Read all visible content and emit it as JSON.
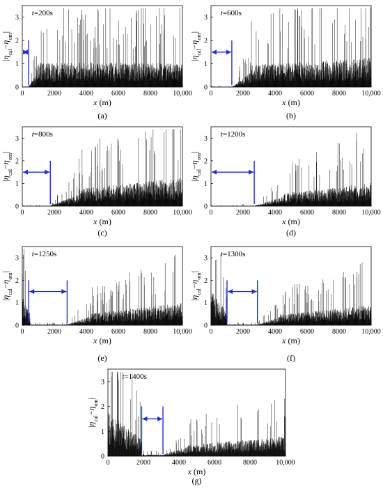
{
  "axis_labels": {
    "x_var": "x",
    "x_unit": " (m)",
    "y_abs": "|",
    "y_eta": "η",
    "y_sub_cal": "cal",
    "y_minus": "−",
    "y_sub_om": "om"
  },
  "time_prefix": "t",
  "time_eq": "=",
  "chart_data": [
    {
      "id": "a",
      "panel_label": "(a)",
      "type": "area",
      "time_value": "200s",
      "xlim": [
        0,
        10000
      ],
      "ylim": [
        0,
        3.5
      ],
      "x_ticks": [
        0,
        2000,
        4000,
        6000,
        8000,
        10000
      ],
      "x_tick_labels": [
        "0",
        "2000",
        "4000",
        "6000",
        "8000",
        "10,000"
      ],
      "y_ticks": [
        0,
        1,
        2,
        3
      ],
      "y_tick_labels": [
        "0",
        "1",
        "2",
        "3"
      ],
      "profile": {
        "flat_until": 400,
        "ramp_to": 900,
        "base_amp": 1.5,
        "trend": 0.0,
        "flat_level": 0.02,
        "front_spike": 0
      },
      "arrow": {
        "x_start": 0,
        "x_end": 400,
        "y": 1.5,
        "v_line_top": 2.0
      },
      "seed": 11
    },
    {
      "id": "b",
      "panel_label": "(b)",
      "type": "area",
      "time_value": "600s",
      "xlim": [
        0,
        10000
      ],
      "ylim": [
        0,
        3.5
      ],
      "x_ticks": [
        0,
        2000,
        4000,
        6000,
        8000,
        10000
      ],
      "x_tick_labels": [
        "0",
        "2000",
        "4000",
        "6000",
        "8000",
        "10,000"
      ],
      "y_ticks": [
        0,
        1,
        2,
        3
      ],
      "y_tick_labels": [
        "0",
        "1",
        "2",
        "3"
      ],
      "profile": {
        "flat_until": 1300,
        "ramp_to": 2500,
        "base_amp": 1.35,
        "trend": 0.25,
        "flat_level": 0.02,
        "front_spike": 0
      },
      "arrow": {
        "x_start": 0,
        "x_end": 1300,
        "y": 1.5,
        "v_line_top": 2.0
      },
      "seed": 23
    },
    {
      "id": "c",
      "panel_label": "(c)",
      "type": "area",
      "time_value": "800s",
      "xlim": [
        0,
        10000
      ],
      "ylim": [
        0,
        3.5
      ],
      "x_ticks": [
        0,
        2000,
        4000,
        6000,
        8000,
        10000
      ],
      "x_tick_labels": [
        "0",
        "2000",
        "4000",
        "6000",
        "8000",
        "10,000"
      ],
      "y_ticks": [
        0,
        1,
        2,
        3
      ],
      "y_tick_labels": [
        "0",
        "1",
        "2",
        "3"
      ],
      "profile": {
        "flat_until": 1750,
        "ramp_to": 3500,
        "base_amp": 1.1,
        "trend": 0.45,
        "flat_level": 0.02,
        "front_spike": 0
      },
      "arrow": {
        "x_start": 0,
        "x_end": 1750,
        "y": 1.5,
        "v_line_top": 2.0
      },
      "seed": 37
    },
    {
      "id": "d",
      "panel_label": "(d)",
      "type": "area",
      "time_value": "1200s",
      "xlim": [
        0,
        10000
      ],
      "ylim": [
        0,
        3.5
      ],
      "x_ticks": [
        0,
        2000,
        4000,
        6000,
        8000,
        10000
      ],
      "x_tick_labels": [
        "0",
        "2000",
        "4000",
        "6000",
        "8000",
        "10,000"
      ],
      "y_ticks": [
        0,
        1,
        2,
        3
      ],
      "y_tick_labels": [
        "0",
        "1",
        "2",
        "3"
      ],
      "profile": {
        "flat_until": 2700,
        "ramp_to": 4500,
        "base_amp": 0.8,
        "trend": 0.6,
        "flat_level": 0.02,
        "front_spike": 0
      },
      "arrow": {
        "x_start": 0,
        "x_end": 2700,
        "y": 1.5,
        "v_line_top": 2.0
      },
      "seed": 41
    },
    {
      "id": "e",
      "panel_label": "(e)",
      "type": "area",
      "time_value": "1250s",
      "xlim": [
        0,
        10000
      ],
      "ylim": [
        0,
        3.5
      ],
      "x_ticks": [
        0,
        2000,
        4000,
        6000,
        8000,
        10000
      ],
      "x_tick_labels": [
        "0",
        "2000",
        "4000",
        "6000",
        "8000",
        "10,000"
      ],
      "y_ticks": [
        0,
        1,
        2,
        3
      ],
      "y_tick_labels": [
        "0",
        "1",
        "2",
        "3"
      ],
      "profile": {
        "flat_until": 2800,
        "ramp_to": 4300,
        "base_amp": 0.75,
        "trend": 0.65,
        "flat_level": 0.05,
        "front_spike": 1.8,
        "front_spike_end": 500
      },
      "arrow": {
        "x_start": 400,
        "x_end": 2800,
        "y": 1.5,
        "v_line_top": 2.0
      },
      "seed": 53
    },
    {
      "id": "f",
      "panel_label": "(f)",
      "type": "area",
      "time_value": "1300s",
      "xlim": [
        0,
        10000
      ],
      "ylim": [
        0,
        3.5
      ],
      "x_ticks": [
        0,
        2000,
        4000,
        6000,
        8000,
        10000
      ],
      "x_tick_labels": [
        "0",
        "2000",
        "4000",
        "6000",
        "8000",
        "10,000"
      ],
      "y_ticks": [
        0,
        1,
        2,
        3
      ],
      "y_tick_labels": [
        "0",
        "1",
        "2",
        "3"
      ],
      "profile": {
        "flat_until": 2900,
        "ramp_to": 4300,
        "base_amp": 0.7,
        "trend": 0.6,
        "flat_level": 0.05,
        "front_spike": 2.2,
        "front_spike_end": 1000
      },
      "arrow": {
        "x_start": 1000,
        "x_end": 2900,
        "y": 1.5,
        "v_line_top": 2.0
      },
      "seed": 61
    },
    {
      "id": "g",
      "panel_label": "(g)",
      "type": "area",
      "time_value": "1400s",
      "xlim": [
        0,
        10000
      ],
      "ylim": [
        0,
        3.5
      ],
      "x_ticks": [
        0,
        2000,
        4000,
        6000,
        8000,
        10000
      ],
      "x_tick_labels": [
        "0",
        "2000",
        "4000",
        "6000",
        "8000",
        "10,000"
      ],
      "y_ticks": [
        0,
        1,
        2,
        3
      ],
      "y_tick_labels": [
        "0",
        "1",
        "2",
        "3"
      ],
      "profile": {
        "flat_until": 3100,
        "ramp_to": 4500,
        "base_amp": 0.65,
        "trend": 0.55,
        "flat_level": 0.1,
        "front_spike": 2.5,
        "front_spike_end": 1900
      },
      "arrow": {
        "x_start": 1900,
        "x_end": 3100,
        "y": 1.5,
        "v_line_top": 2.0
      },
      "seed": 73
    }
  ],
  "colors": {
    "signal": "#000000",
    "arrow": "#1f2fcc",
    "axis": "#000000",
    "background": "#ffffff"
  }
}
